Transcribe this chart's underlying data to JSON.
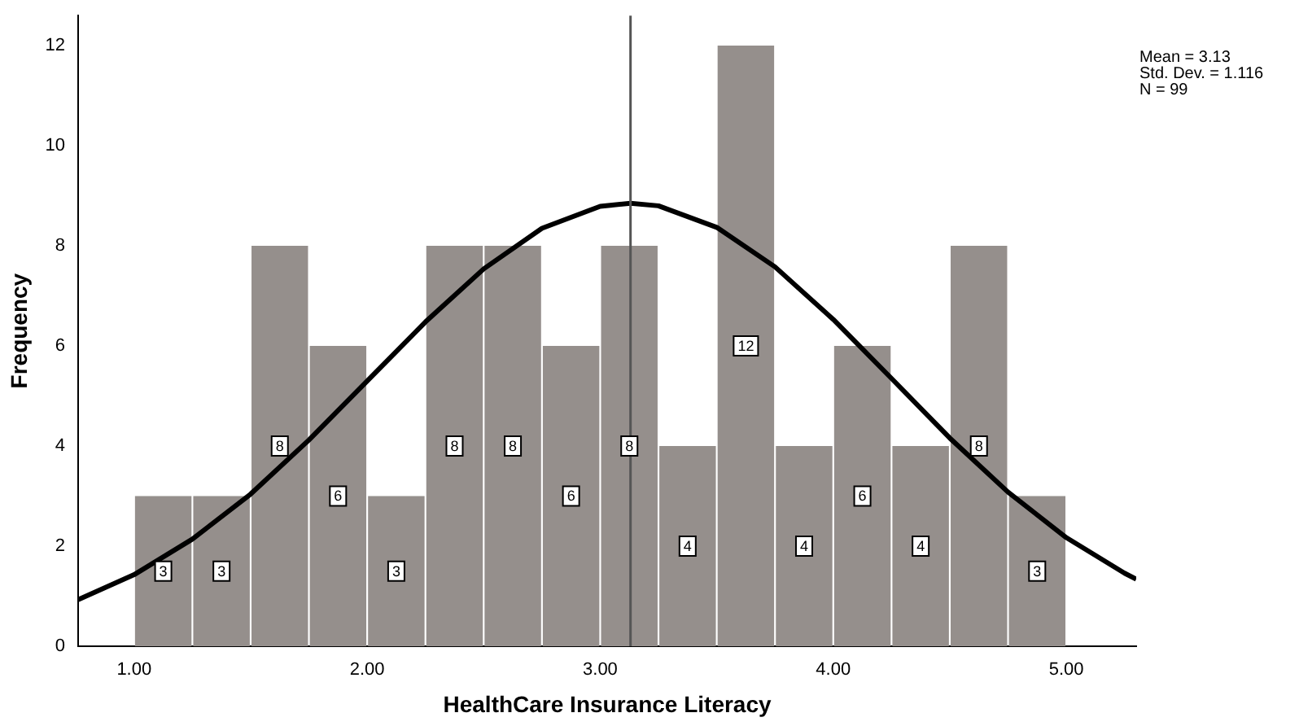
{
  "chart_data": {
    "type": "histogram",
    "xlabel": "HealthCare Insurance Literacy",
    "ylabel": "Frequency",
    "bins": [
      1,
      1.25,
      1.5,
      1.75,
      2,
      2.25,
      2.5,
      2.75,
      3,
      3.25,
      3.5,
      3.75,
      4,
      4.25,
      4.5,
      4.75,
      5
    ],
    "values": [
      3,
      3,
      8,
      6,
      3,
      8,
      8,
      6,
      8,
      4,
      12,
      4,
      6,
      4,
      8,
      3
    ],
    "color": "#958f8c",
    "value_labels": [
      "3",
      "3",
      "8",
      "6",
      "3",
      "8",
      "8",
      "6",
      "8",
      "4",
      "12",
      "4",
      "6",
      "4",
      "8",
      "3"
    ],
    "series": [
      {
        "type": "line",
        "color": "#000000",
        "x": [
          0.76,
          1,
          1.25,
          1.5,
          1.75,
          2,
          2.25,
          2.5,
          2.75,
          3,
          3.13,
          3.25,
          3.5,
          3.75,
          4,
          4.25,
          4.5,
          4.75,
          5,
          5.25,
          5.3
        ],
        "values": [
          0.93,
          1.43,
          2.14,
          3.04,
          4.12,
          5.3,
          6.48,
          7.54,
          8.35,
          8.79,
          8.85,
          8.8,
          8.37,
          7.58,
          6.53,
          5.35,
          4.16,
          3.08,
          2.17,
          1.46,
          1.34
        ]
      }
    ],
    "ref_lines": [
      {
        "axis": "x",
        "value": 3.13,
        "color": "#555555"
      }
    ],
    "xlim": [
      0.76,
      5.3
    ],
    "xticks": [
      {
        "value": 1,
        "label": "1.00"
      },
      {
        "value": 2,
        "label": "2.00"
      },
      {
        "value": 3,
        "label": "3.00"
      },
      {
        "value": 4,
        "label": "4.00"
      },
      {
        "value": 5,
        "label": "5.00"
      }
    ],
    "ylim": [
      0,
      12.6
    ],
    "yticks": [
      0,
      2,
      4,
      6,
      8,
      10,
      12
    ],
    "annotations": [
      "Mean = 3.13",
      "Std. Dev. = 1.116",
      "N = 99"
    ],
    "grid": false,
    "legend": false
  }
}
